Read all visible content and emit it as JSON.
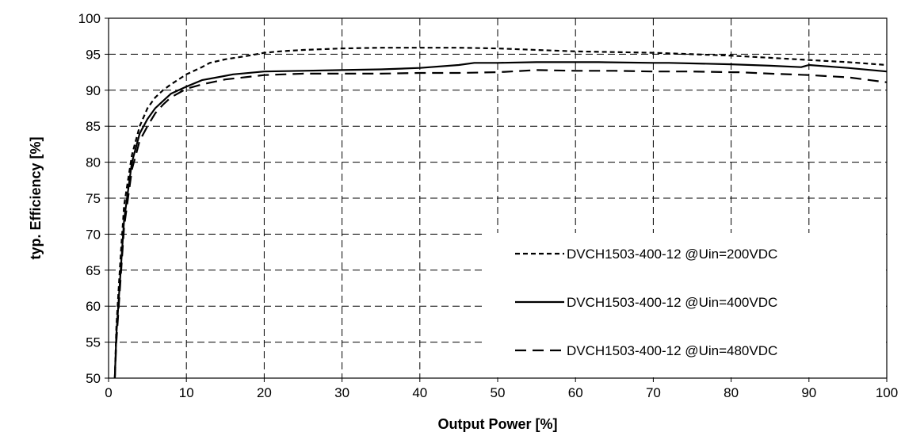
{
  "chart_data": {
    "type": "line",
    "title": "",
    "xlabel": "Output Power [%]",
    "ylabel": "typ. Efficiency [%]",
    "xlim": [
      0,
      100
    ],
    "ylim": [
      50,
      100
    ],
    "x_ticks": [
      "0",
      "10",
      "20",
      "30",
      "40",
      "50",
      "60",
      "70",
      "80",
      "90",
      "100"
    ],
    "y_ticks": [
      "50",
      "55",
      "60",
      "65",
      "70",
      "75",
      "80",
      "85",
      "90",
      "95",
      "100"
    ],
    "grid": true,
    "legend_position": "lower-right",
    "series": [
      {
        "name": "DVCH1503-400-12 @Uin=200VDC",
        "style": "short-dash",
        "x": [
          0.8,
          1,
          1.5,
          2,
          3,
          4,
          5,
          6,
          7,
          8,
          10,
          12,
          13,
          15,
          18,
          20,
          22,
          25,
          30,
          35,
          40,
          45,
          50,
          55,
          60,
          65,
          70,
          75,
          80,
          85,
          90,
          95,
          100
        ],
        "y": [
          50,
          57,
          66,
          74,
          81,
          85,
          87.5,
          89,
          90,
          90.8,
          92.2,
          93.2,
          93.8,
          94.3,
          94.8,
          95.2,
          95.4,
          95.6,
          95.8,
          95.9,
          95.9,
          95.9,
          95.8,
          95.6,
          95.4,
          95.3,
          95.2,
          95,
          94.8,
          94.5,
          94.2,
          93.9,
          93.5
        ]
      },
      {
        "name": "DVCH1503-400-12 @Uin=400VDC",
        "style": "solid",
        "x": [
          0.8,
          1,
          1.5,
          2,
          3,
          4,
          5,
          6,
          7,
          8,
          9,
          10,
          12,
          14,
          16,
          20,
          25,
          30,
          35,
          40,
          45,
          47,
          50,
          55,
          60,
          63,
          70,
          72,
          80,
          85,
          89,
          90,
          95,
          100
        ],
        "y": [
          50,
          56,
          64,
          72,
          80,
          84,
          86,
          87.5,
          88.5,
          89.5,
          90,
          90.5,
          91.4,
          91.8,
          92.2,
          92.6,
          92.7,
          92.8,
          92.9,
          93.1,
          93.5,
          93.8,
          93.8,
          93.9,
          93.9,
          93.9,
          93.8,
          93.8,
          93.6,
          93.4,
          93.2,
          93.5,
          93.1,
          92.6
        ]
      },
      {
        "name": "DVCH1503-400-12 @Uin=480VDC",
        "style": "long-dash",
        "x": [
          0.8,
          1,
          1.5,
          2,
          3,
          4,
          5,
          6,
          7,
          8,
          10,
          12,
          15,
          20,
          25,
          30,
          35,
          40,
          45,
          50,
          55,
          60,
          65,
          70,
          75,
          80,
          81,
          85,
          90,
          95,
          100
        ],
        "y": [
          50,
          55,
          63,
          71,
          79,
          83,
          85,
          86.8,
          88,
          89,
          90.2,
          90.8,
          91.5,
          92.1,
          92.3,
          92.3,
          92.3,
          92.4,
          92.4,
          92.5,
          92.8,
          92.7,
          92.7,
          92.6,
          92.6,
          92.5,
          92.5,
          92.3,
          92.1,
          91.8,
          91.1
        ]
      }
    ]
  }
}
